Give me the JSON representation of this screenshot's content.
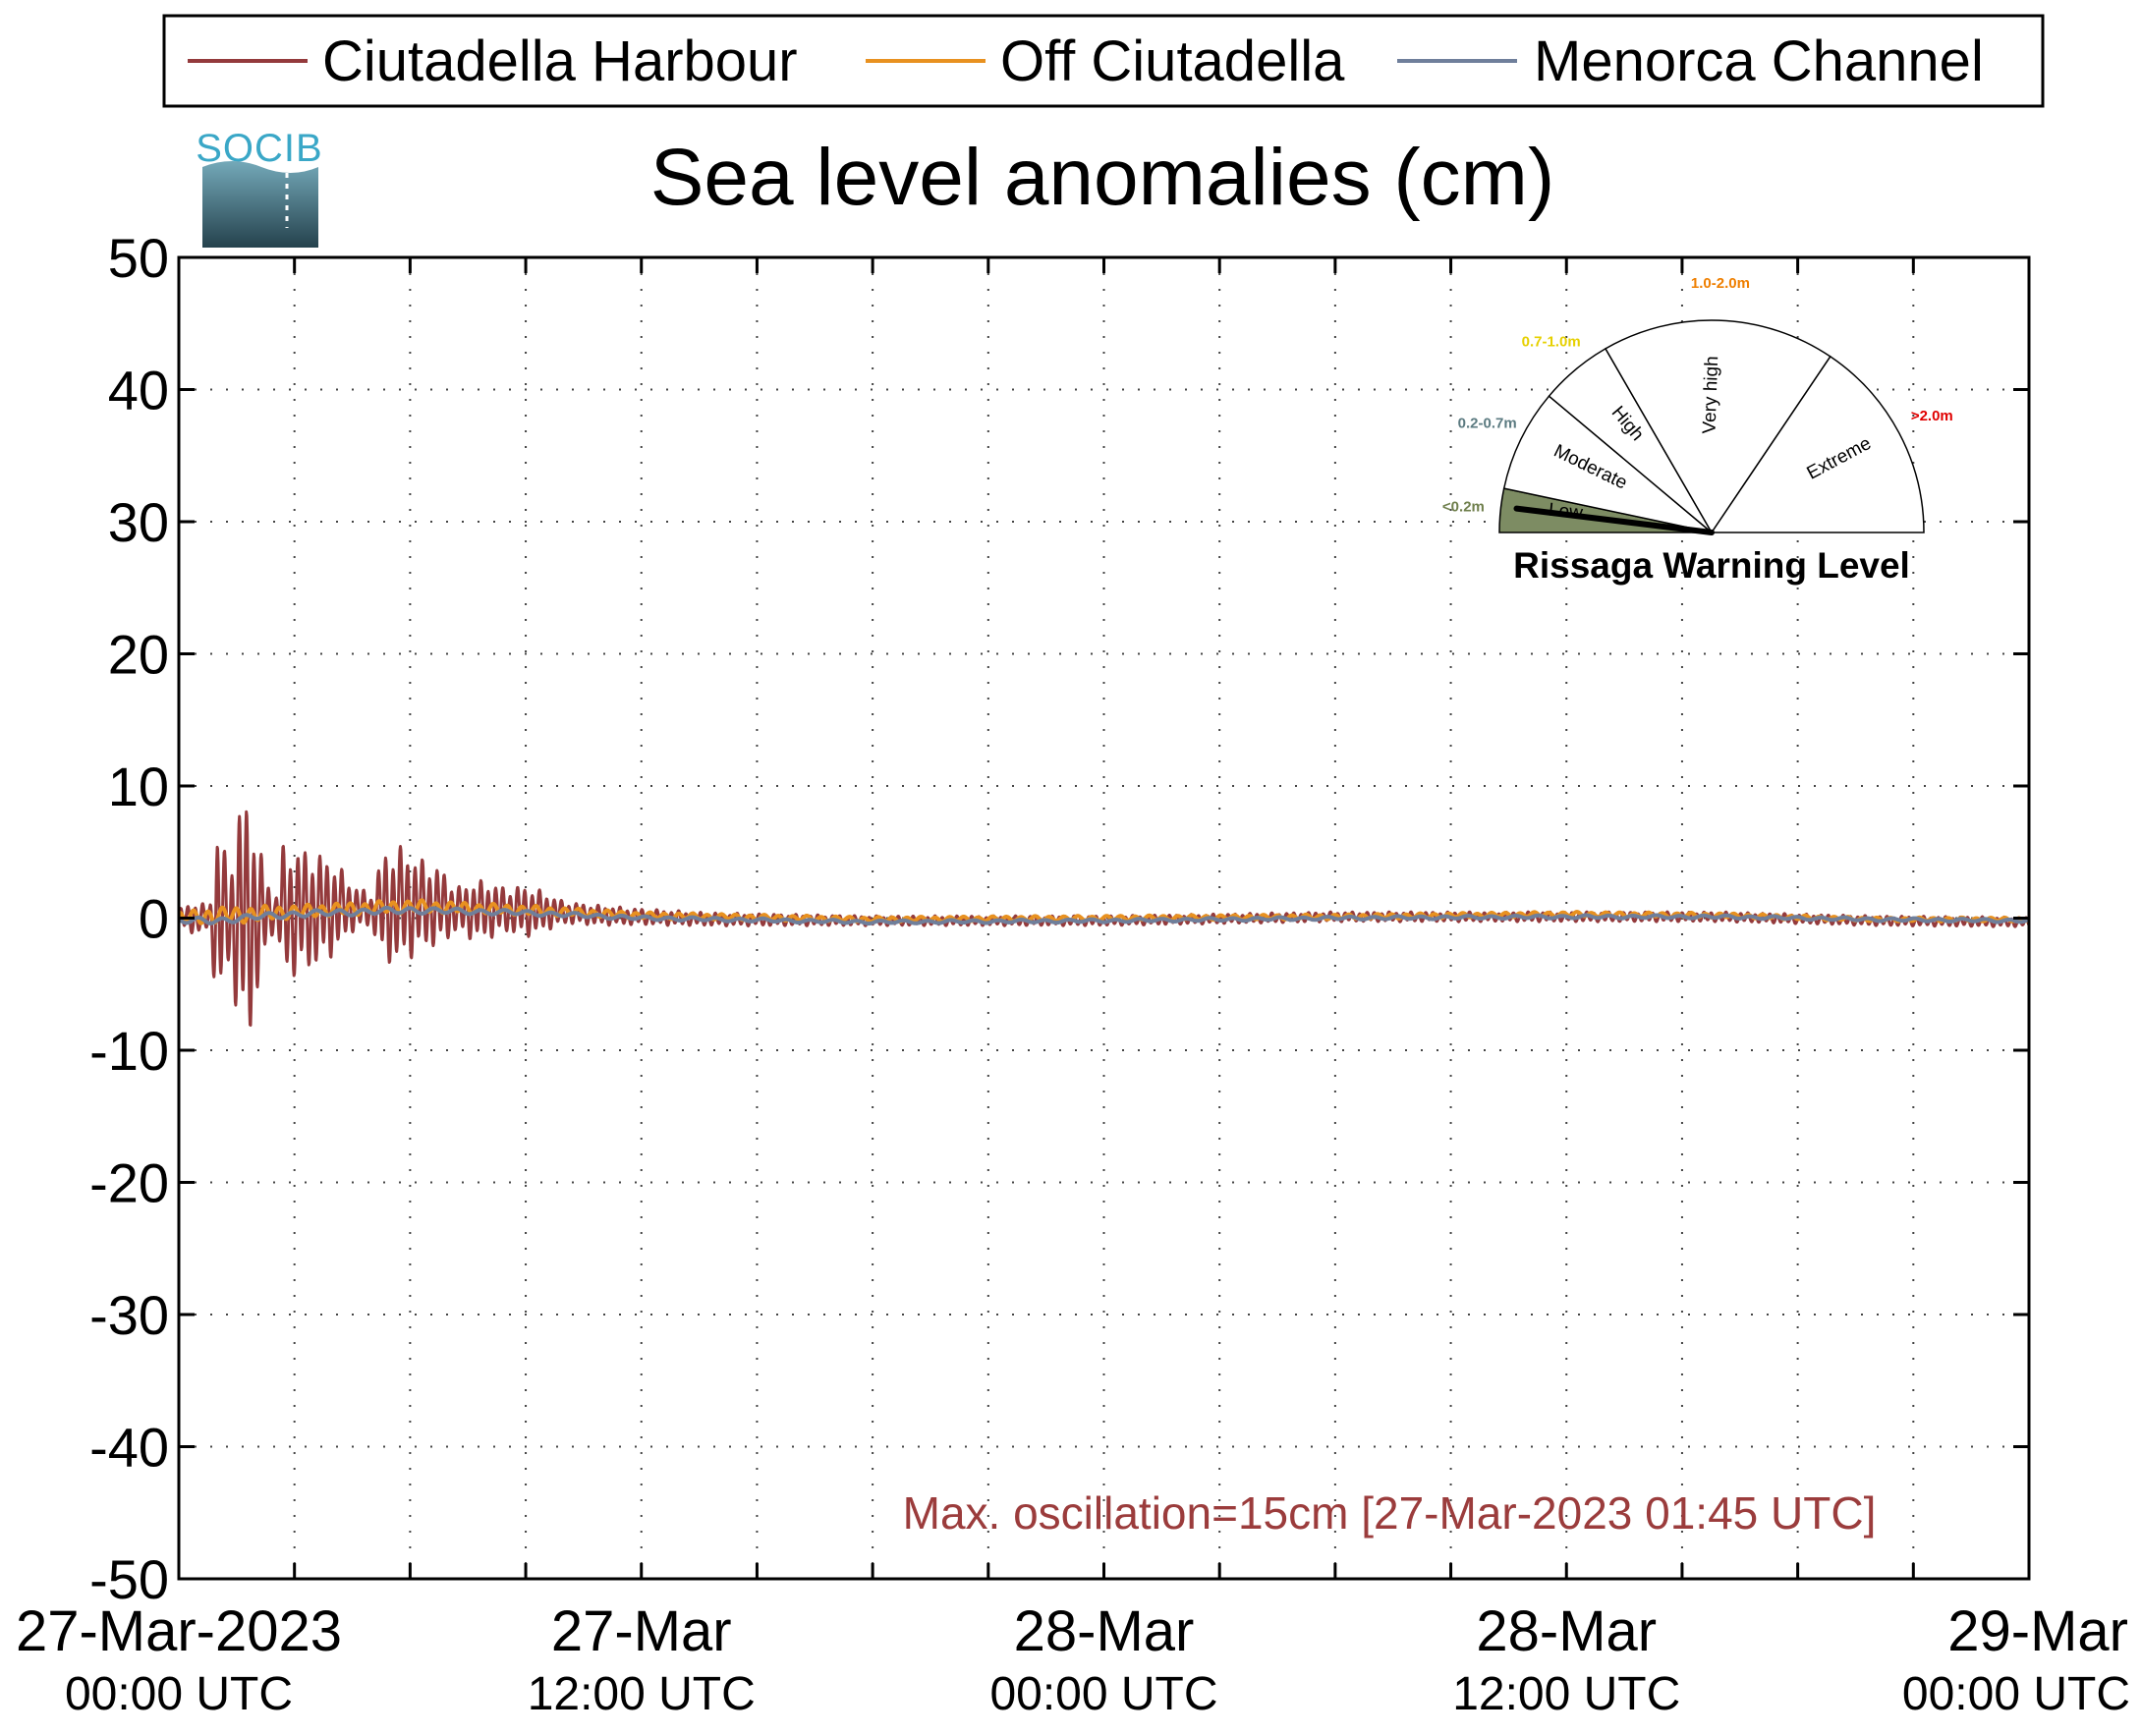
{
  "colors": {
    "harbour": "#943a3c",
    "off": "#e89120",
    "channel": "#6f7f9b",
    "annotation": "#9b3c3c",
    "logo_text": "#3aa7c7",
    "logo_dark": "#25424d",
    "logo_light": "#74a9b9"
  },
  "logo": {
    "text": "SOCIB"
  },
  "gauge": {
    "title": "Rissaga Warning Level",
    "needle_value": "<0.2m",
    "sectors": [
      {
        "name": "Low",
        "range": "<0.2m",
        "range_color": "#6f7f4c",
        "active": true,
        "fill": "#7d8c63"
      },
      {
        "name": "Moderate",
        "range": "0.2-0.7m",
        "range_color": "#5b7a80",
        "active": false,
        "fill": "#ffffff"
      },
      {
        "name": "High",
        "range": "0.7-1.0m",
        "range_color": "#e6d000",
        "active": false,
        "fill": "#ffffff"
      },
      {
        "name": "Very high",
        "range": "1.0-2.0m",
        "range_color": "#ef7f00",
        "active": false,
        "fill": "#ffffff"
      },
      {
        "name": "Extreme",
        "range": ">2.0m",
        "range_color": "#e00000",
        "active": false,
        "fill": "#ffffff"
      }
    ]
  },
  "chart_data": {
    "type": "line",
    "title": "Sea level anomalies (cm)",
    "xlabel": "",
    "ylabel": "",
    "ylim": [
      -50,
      50
    ],
    "yticks": [
      50,
      40,
      30,
      20,
      10,
      0,
      -10,
      -20,
      -30,
      -40,
      -50
    ],
    "xlim_hours": [
      0,
      48
    ],
    "xticks": [
      {
        "hour": 0,
        "date": "27-Mar-2023",
        "time": "00:00 UTC"
      },
      {
        "hour": 12,
        "date": "27-Mar",
        "time": "12:00 UTC"
      },
      {
        "hour": 24,
        "date": "28-Mar",
        "time": "00:00 UTC"
      },
      {
        "hour": 36,
        "date": "28-Mar",
        "time": "12:00 UTC"
      },
      {
        "hour": 48,
        "date": "29-Mar",
        "time": "00:00 UTC"
      }
    ],
    "minor_grid_hours": [
      3,
      6,
      9,
      15,
      18,
      21,
      27,
      30,
      33,
      39,
      42,
      45
    ],
    "grid": true,
    "legend_position": "top",
    "annotation": "Max. oscillation=15cm [27-Mar-2023 01:45 UTC]",
    "series": [
      {
        "name": "Ciutadella Harbour",
        "color_key": "harbour",
        "envelope": {
          "x": [
            0,
            0.4,
            0.8,
            1.0,
            1.3,
            1.6,
            1.9,
            2.2,
            2.5,
            2.7,
            3.0,
            3.5,
            4.0,
            4.5,
            5.0,
            5.3,
            5.8,
            6.3,
            6.8,
            7.2,
            7.6,
            8.0,
            8.5,
            9.0,
            9.5,
            10.0,
            11.0,
            12.0,
            14.0,
            18.0,
            24.0,
            30.0,
            36.0,
            40.0,
            44.0,
            48.0
          ],
          "mid": [
            0,
            0,
            0,
            0,
            0,
            0,
            0,
            0.2,
            0.5,
            0.5,
            0.5,
            0.6,
            0.8,
            0.8,
            0.6,
            0.8,
            1.0,
            1.0,
            0.9,
            0.6,
            0.6,
            0.6,
            0.6,
            0.5,
            0.5,
            0.4,
            0.2,
            0.1,
            -0.1,
            -0.2,
            -0.2,
            0.1,
            0.1,
            0.1,
            -0.2,
            -0.3
          ],
          "amp": [
            0.6,
            1.0,
            0.8,
            6.0,
            3.0,
            7.5,
            7.0,
            3.0,
            0.8,
            4.0,
            4.0,
            3.6,
            3.0,
            1.5,
            1.0,
            3.5,
            3.6,
            2.8,
            2.4,
            1.4,
            1.8,
            1.8,
            1.4,
            1.6,
            1.2,
            0.7,
            0.6,
            0.5,
            0.4,
            0.3,
            0.3,
            0.3,
            0.3,
            0.3,
            0.3,
            0.3
          ]
        }
      },
      {
        "name": "Off Ciutadella",
        "color_key": "off",
        "envelope": {
          "x": [
            0,
            1,
            2,
            3,
            6,
            9,
            12,
            18,
            24,
            30,
            36,
            40,
            44,
            48
          ],
          "mid": [
            0,
            0.2,
            0.3,
            0.5,
            0.9,
            0.6,
            0.2,
            -0.1,
            0.0,
            0.1,
            0.3,
            0.2,
            -0.1,
            -0.1
          ],
          "amp": [
            0.4,
            0.5,
            0.5,
            0.4,
            0.4,
            0.3,
            0.2,
            0.15,
            0.15,
            0.15,
            0.15,
            0.15,
            0.12,
            0.12
          ]
        }
      },
      {
        "name": "Menorca Channel",
        "color_key": "channel",
        "envelope": {
          "x": [
            0,
            1,
            2,
            3,
            6,
            9,
            12,
            18,
            24,
            30,
            36,
            40,
            44,
            48
          ],
          "mid": [
            -0.2,
            -0.2,
            0.1,
            0.3,
            0.6,
            0.4,
            0.0,
            -0.3,
            -0.2,
            0.0,
            0.1,
            0.1,
            -0.1,
            -0.2
          ],
          "amp": [
            0.2,
            0.2,
            0.2,
            0.2,
            0.2,
            0.15,
            0.12,
            0.1,
            0.1,
            0.1,
            0.1,
            0.1,
            0.1,
            0.1
          ]
        }
      }
    ]
  }
}
